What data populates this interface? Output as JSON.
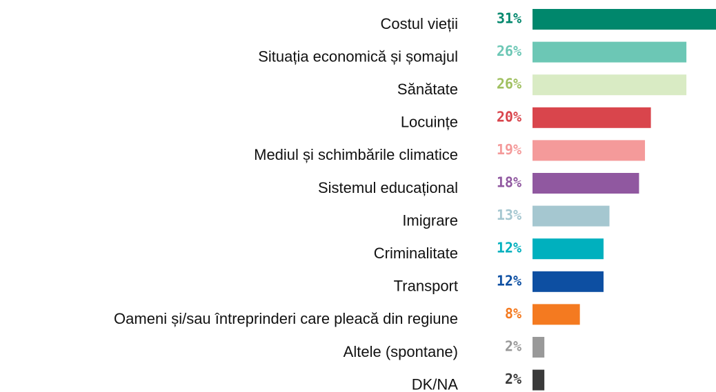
{
  "chart_data": {
    "type": "hbar",
    "categories": [
      "Costul vieții",
      "Situația economică și șomajul",
      "Sănătate",
      "Locuințe",
      "Mediul și schimbările climatice",
      "Sistemul educațional",
      "Imigrare",
      "Criminalitate",
      "Transport",
      "Oameni și/sau întreprinderi care pleacă din regiune",
      "Altele (spontane)",
      "DK/NA"
    ],
    "values": [
      31,
      26,
      26,
      20,
      19,
      18,
      13,
      12,
      12,
      8,
      2,
      2
    ],
    "value_labels": [
      "31%",
      "26%",
      "26%",
      "20%",
      "19%",
      "18%",
      "13%",
      "12%",
      "12%",
      "8%",
      "2%",
      "2%"
    ],
    "colors": [
      "#00876c",
      "#6cc7b5",
      "#d9ebc4",
      "#d9454c",
      "#f49a9a",
      "#9058a0",
      "#a5c7d0",
      "#00b0be",
      "#0d4fa2",
      "#f47a20",
      "#999999",
      "#3a3a3a"
    ],
    "label_colors": [
      "#00876c",
      "#6cc7b5",
      "#a0c060",
      "#d9454c",
      "#f49a9a",
      "#9058a0",
      "#a5c7d0",
      "#00b0be",
      "#0d4fa2",
      "#f47a20",
      "#999999",
      "#3a3a3a"
    ],
    "xlim": [
      0,
      31
    ]
  }
}
